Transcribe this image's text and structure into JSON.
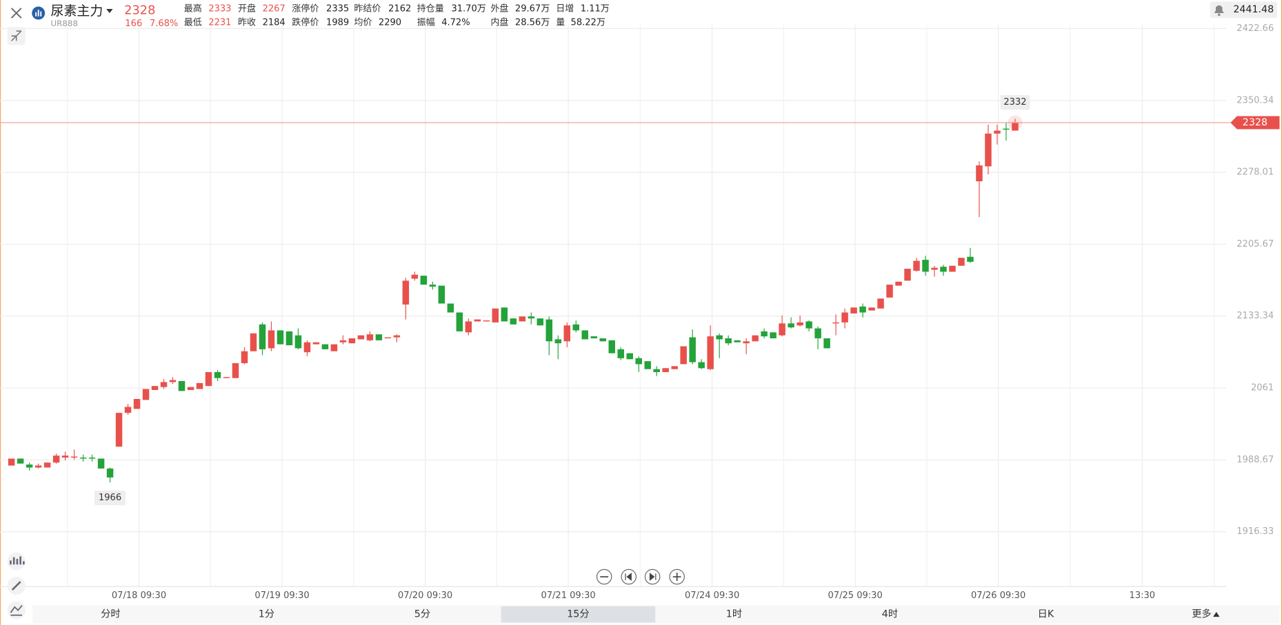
{
  "header": {
    "symbol": "尿素主力",
    "code": "UR888",
    "price": "2328",
    "change": "166",
    "change_pct": "7.68%",
    "index_value": "2441.48",
    "stats": [
      [
        {
          "label": "最高",
          "value": "2333",
          "color": "#e8514b"
        },
        {
          "label": "开盘",
          "value": "2267",
          "color": "#e8514b"
        },
        {
          "label": "涨停价",
          "value": "2335"
        },
        {
          "label": "昨结价",
          "value": "2162"
        },
        {
          "label": "持仓量",
          "value": "31.70万"
        },
        {
          "label": "外盘",
          "value": "29.67万"
        },
        {
          "label": "日增",
          "value": "1.11万"
        }
      ],
      [
        {
          "label": "最低",
          "value": "2231",
          "color": "#e8514b"
        },
        {
          "label": "昨收",
          "value": "2184"
        },
        {
          "label": "跌停价",
          "value": "1989"
        },
        {
          "label": "均价",
          "value": "2290"
        },
        {
          "label": "振幅",
          "value": "4.72%"
        },
        {
          "label": "内盘",
          "value": "28.56万"
        },
        {
          "label": "量",
          "value": "58.22万"
        }
      ]
    ]
  },
  "chart_data": {
    "type": "candlestick",
    "up_color": "#e8514b",
    "down_color": "#23a33a",
    "price_line_color": "#f3a29b",
    "grid": true,
    "open": [
      1983,
      1990,
      1984,
      1981,
      1981,
      1986,
      1991,
      1991,
      1991,
      1991,
      1990,
      1980,
      2002,
      2036,
      2040,
      2049,
      2059,
      2062,
      2067,
      2068,
      2059,
      2060,
      2063,
      2077,
      2071,
      2071,
      2086,
      2098,
      2125,
      2101,
      2119,
      2118,
      2114,
      2097,
      2105,
      2105,
      2098,
      2107,
      2106,
      2110,
      2109,
      2115,
      2111,
      2112,
      2145,
      2171,
      2174,
      2165,
      2164,
      2146,
      2137,
      2117,
      2128,
      2128,
      2127,
      2142,
      2131,
      2128,
      2133,
      2131,
      2130,
      2110,
      2108,
      2125,
      2119,
      2113,
      2111,
      2109,
      2100,
      2096,
      2091,
      2088,
      2080,
      2077,
      2080,
      2085,
      2112,
      2087,
      2080,
      2114,
      2111,
      2109,
      2106,
      2108,
      2118,
      2117,
      2114,
      2126,
      2124,
      2128,
      2121,
      2111,
      2126,
      2127,
      2136,
      2143,
      2139,
      2141,
      2152,
      2164,
      2169,
      2179,
      2190,
      2180,
      2183,
      2178,
      2184,
      2193,
      2269,
      2284,
      2317,
      2322,
      2320
    ],
    "close": [
      1990,
      1985,
      1981,
      1983,
      1986,
      1993,
      1993,
      1992,
      1990,
      1990,
      1980,
      1971,
      2036,
      2042,
      2050,
      2060,
      2063,
      2067,
      2069,
      2058,
      2062,
      2066,
      2077,
      2071,
      2072,
      2086,
      2098,
      2116,
      2100,
      2119,
      2105,
      2104,
      2101,
      2107,
      2107,
      2100,
      2105,
      2109,
      2111,
      2114,
      2115,
      2109,
      2112,
      2114,
      2169,
      2175,
      2165,
      2163,
      2146,
      2137,
      2118,
      2128,
      2130,
      2129,
      2141,
      2128,
      2125,
      2133,
      2131,
      2124,
      2108,
      2106,
      2124,
      2119,
      2110,
      2111,
      2108,
      2096,
      2091,
      2090,
      2085,
      2080,
      2077,
      2081,
      2083,
      2103,
      2087,
      2081,
      2113,
      2110,
      2106,
      2107,
      2108,
      2114,
      2113,
      2111,
      2126,
      2122,
      2127,
      2121,
      2111,
      2101,
      2127,
      2137,
      2142,
      2137,
      2142,
      2151,
      2165,
      2168,
      2181,
      2189,
      2178,
      2182,
      2178,
      2184,
      2192,
      2188,
      2285,
      2317,
      2320,
      2321,
      2328
    ],
    "high": [
      1990,
      1990,
      1986,
      1985,
      1986,
      1995,
      1997,
      1999,
      1994,
      1994,
      1990,
      1981,
      2036,
      2045,
      2050,
      2060,
      2063,
      2070,
      2072,
      2068,
      2062,
      2066,
      2077,
      2079,
      2072,
      2086,
      2102,
      2116,
      2127,
      2128,
      2119,
      2118,
      2121,
      2109,
      2107,
      2105,
      2105,
      2114,
      2111,
      2114,
      2118,
      2115,
      2112,
      2115,
      2172,
      2178,
      2174,
      2168,
      2164,
      2146,
      2137,
      2131,
      2130,
      2129,
      2141,
      2142,
      2131,
      2133,
      2137,
      2131,
      2133,
      2114,
      2127,
      2129,
      2119,
      2113,
      2111,
      2109,
      2102,
      2096,
      2093,
      2088,
      2083,
      2081,
      2083,
      2103,
      2120,
      2090,
      2124,
      2116,
      2114,
      2109,
      2111,
      2114,
      2121,
      2117,
      2134,
      2132,
      2134,
      2129,
      2123,
      2111,
      2135,
      2141,
      2142,
      2146,
      2142,
      2151,
      2165,
      2168,
      2181,
      2192,
      2194,
      2184,
      2185,
      2184,
      2192,
      2202,
      2289,
      2326,
      2326,
      2328,
      2332
    ],
    "low": [
      1983,
      1985,
      1978,
      1980,
      1981,
      1985,
      1988,
      1989,
      1987,
      1987,
      1980,
      1966,
      2002,
      2034,
      2040,
      2049,
      2059,
      2060,
      2065,
      2058,
      2059,
      2060,
      2063,
      2068,
      2071,
      2071,
      2085,
      2098,
      2094,
      2098,
      2105,
      2104,
      2100,
      2093,
      2105,
      2100,
      2098,
      2105,
      2106,
      2110,
      2108,
      2109,
      2111,
      2107,
      2130,
      2169,
      2165,
      2160,
      2146,
      2137,
      2118,
      2114,
      2128,
      2128,
      2127,
      2128,
      2125,
      2128,
      2125,
      2124,
      2094,
      2090,
      2102,
      2117,
      2110,
      2111,
      2108,
      2096,
      2089,
      2090,
      2077,
      2080,
      2073,
      2077,
      2080,
      2085,
      2085,
      2080,
      2079,
      2091,
      2104,
      2107,
      2095,
      2108,
      2111,
      2111,
      2113,
      2121,
      2123,
      2118,
      2100,
      2101,
      2114,
      2121,
      2136,
      2132,
      2139,
      2141,
      2152,
      2164,
      2169,
      2178,
      2174,
      2173,
      2174,
      2178,
      2184,
      2187,
      2233,
      2276,
      2306,
      2310,
      2320
    ],
    "ylim": [
      1861.2,
      2451.4
    ],
    "yticks": [
      2422.66,
      2350.34,
      2278.01,
      2205.67,
      2133.34,
      2061,
      1988.67,
      1916.33
    ],
    "xlim": [
      -1.28,
      134.67
    ],
    "xticks": [
      {
        "value": 14.23,
        "label": "07/18 09:30"
      },
      {
        "value": 30.2,
        "label": "07/19 09:30"
      },
      {
        "value": 46.17,
        "label": "07/20 09:30"
      },
      {
        "value": 62.14,
        "label": "07/21 09:30"
      },
      {
        "value": 78.19,
        "label": "07/24 09:30"
      },
      {
        "value": 94.16,
        "label": "07/25 09:30"
      },
      {
        "value": 110.13,
        "label": "07/26 09:30"
      },
      {
        "value": 126.19,
        "label": "13:30"
      }
    ]
  },
  "tabs": [
    {
      "label": "分时"
    },
    {
      "label": "1分"
    },
    {
      "label": "5分"
    },
    {
      "label": "15分",
      "selected": true
    },
    {
      "label": "1时"
    },
    {
      "label": "4时"
    },
    {
      "label": "日K"
    },
    {
      "label": "更多"
    }
  ]
}
